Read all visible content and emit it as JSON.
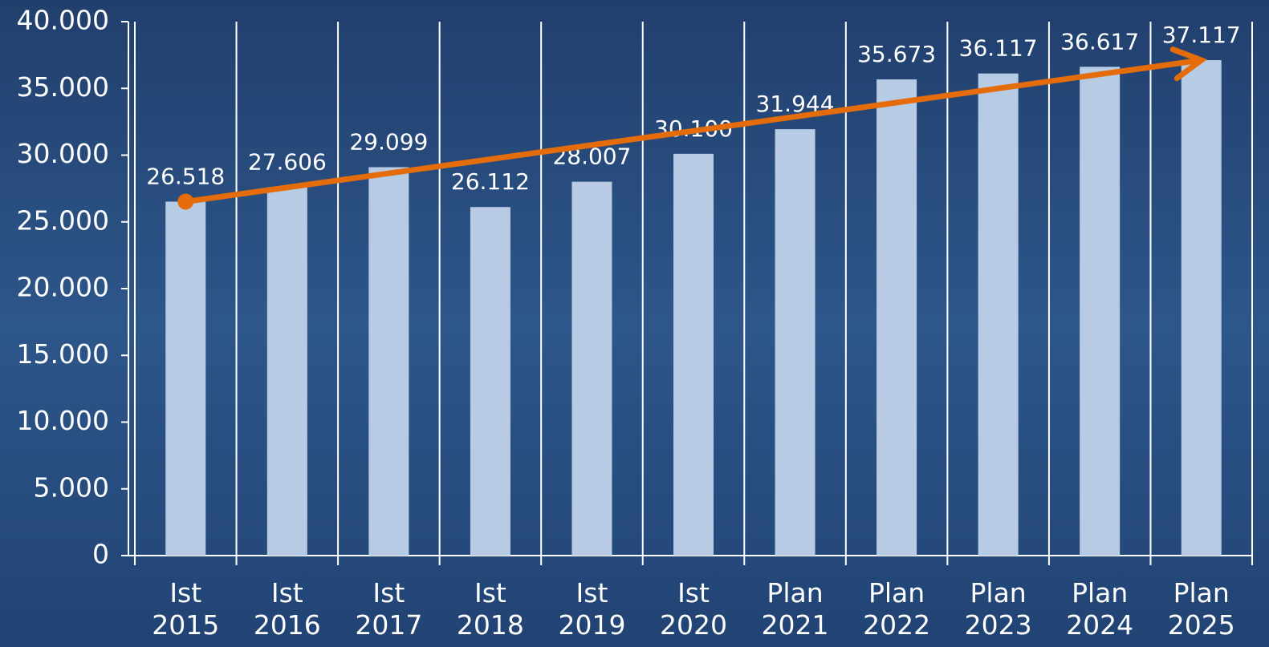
{
  "chart_data": {
    "type": "bar",
    "categories": [
      "Ist 2015",
      "Ist 2016",
      "Ist 2017",
      "Ist 2018",
      "Ist 2019",
      "Ist 2020",
      "Plan 2021",
      "Plan 2022",
      "Plan 2023",
      "Plan 2024",
      "Plan 2025"
    ],
    "values": [
      26518,
      27606,
      29099,
      26112,
      28007,
      30100,
      31944,
      35673,
      36117,
      36617,
      37117
    ],
    "value_labels": [
      "26.518",
      "27.606",
      "29.099",
      "26.112",
      "28.007",
      "30.100",
      "31.944",
      "35.673",
      "36.117",
      "36.617",
      "37.117"
    ],
    "color": "#b8cbe4",
    "trend_color": "#e46c0a",
    "ylim": [
      0,
      40000
    ],
    "yticks": [
      0,
      {
        "value": 5000,
        "label": "5.000"
      },
      {
        "value": 10000,
        "label": "10.000"
      },
      {
        "value": 15000,
        "label": "15.000"
      },
      {
        "value": 20000,
        "label": "20.000"
      },
      {
        "value": 25000,
        "label": "25.000"
      },
      {
        "value": 30000,
        "label": "30.000"
      },
      {
        "value": 35000,
        "label": "35.000"
      },
      {
        "value": 40000,
        "label": "40.000"
      }
    ]
  }
}
